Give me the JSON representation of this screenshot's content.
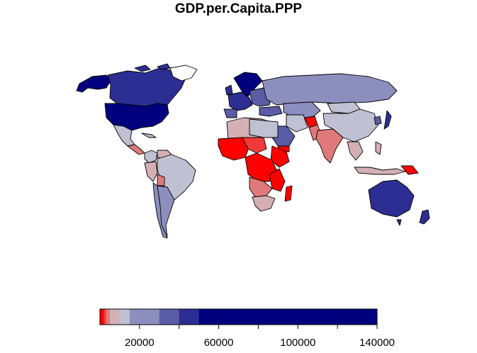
{
  "title": "GDP.per.Capita.PPP",
  "colors": {
    "background": "#ffffff",
    "border": "#000000",
    "c1": "#ff0000",
    "c2": "#f03a3a",
    "c3": "#e07a7a",
    "c4": "#d4b0b4",
    "c5": "#bfc0d2",
    "c6": "#8c8fbe",
    "c7": "#5a5ca6",
    "c8": "#2c2e94",
    "c9": "#00007f"
  },
  "legend": {
    "min": 0,
    "max": 140000,
    "breaks": [
      0,
      1000,
      2000,
      3000,
      5000,
      10000,
      15000,
      20000,
      30000,
      40000,
      50000,
      60000,
      70000,
      80000,
      90000,
      100000,
      110000,
      120000,
      130000,
      140000
    ],
    "tick_labels": [
      "20000",
      "60000",
      "100000",
      "140000"
    ],
    "tick_values": [
      20000,
      60000,
      100000,
      140000
    ],
    "minor_tick_values": [
      40000,
      80000,
      120000
    ]
  }
}
